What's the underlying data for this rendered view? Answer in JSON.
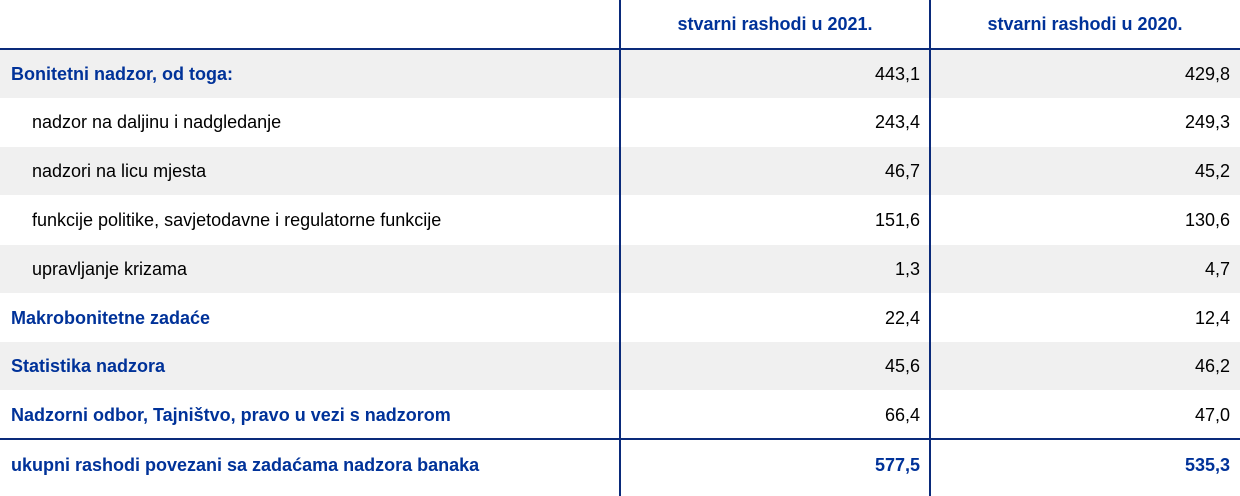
{
  "header": {
    "col1": "stvarni rashodi u 2021.",
    "col2": "stvarni rashodi u 2020."
  },
  "rows": [
    {
      "label": "Bonitetni nadzor, od toga:",
      "v2021": "443,1",
      "v2020": "429,8"
    },
    {
      "label": "nadzor na daljinu i nadgledanje",
      "v2021": "243,4",
      "v2020": "249,3"
    },
    {
      "label": "nadzori na licu mjesta",
      "v2021": "46,7",
      "v2020": "45,2"
    },
    {
      "label": "funkcije politike, savjetodavne i regulatorne funkcije",
      "v2021": "151,6",
      "v2020": "130,6"
    },
    {
      "label": "upravljanje krizama",
      "v2021": "1,3",
      "v2020": "4,7"
    },
    {
      "label": "Makrobonitetne zadaće",
      "v2021": "22,4",
      "v2020": "12,4"
    },
    {
      "label": "Statistika nadzora",
      "v2021": "45,6",
      "v2020": "46,2"
    },
    {
      "label": "Nadzorni odbor, Tajništvo, pravo u vezi s nadzorom",
      "v2021": "66,4",
      "v2020": "47,0"
    }
  ],
  "total": {
    "label": "ukupni rashodi povezani sa zadaćama nadzora banaka",
    "v2021": "577,5",
    "v2020": "535,3"
  }
}
